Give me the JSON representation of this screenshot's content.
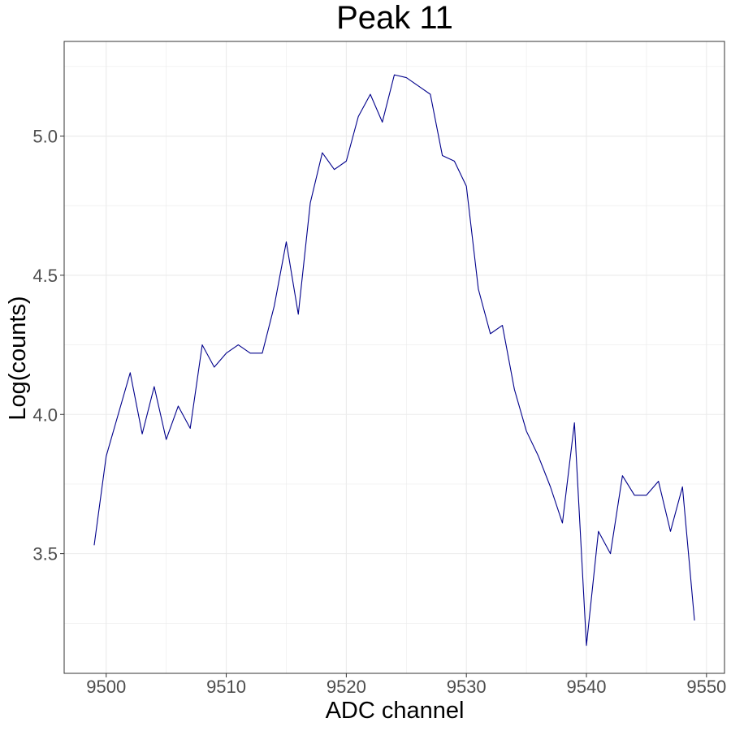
{
  "chart_data": {
    "type": "line",
    "title": "Peak 11",
    "xlabel": "ADC channel",
    "ylabel": "Log(counts)",
    "xlim": [
      9496.5,
      9551.5
    ],
    "ylim": [
      3.07,
      5.34
    ],
    "xticks": [
      9500,
      9510,
      9520,
      9530,
      9540,
      9550
    ],
    "xtick_labels": [
      "9500",
      "9510",
      "9520",
      "9530",
      "9540",
      "9550"
    ],
    "yticks": [
      3.5,
      4.0,
      4.5,
      5.0
    ],
    "ytick_labels": [
      "3.5",
      "4.0",
      "4.5",
      "5.0"
    ],
    "grid": true,
    "legend": "none",
    "colors": {
      "line": "#00008b",
      "grid": "#ebebeb",
      "panel_border": "#333333"
    },
    "series": [
      {
        "x": [
          9499,
          9500,
          9501,
          9502,
          9503,
          9504,
          9505,
          9506,
          9507,
          9508,
          9509,
          9510,
          9511,
          9512,
          9513,
          9514,
          9515,
          9516,
          9517,
          9518,
          9519,
          9520,
          9521,
          9522,
          9523,
          9524,
          9525,
          9526,
          9527,
          9528,
          9529,
          9530,
          9531,
          9532,
          9533,
          9534,
          9535,
          9536,
          9537,
          9538,
          9539,
          9540,
          9541,
          9542,
          9543,
          9544,
          9545,
          9546,
          9547,
          9548,
          9549
        ],
        "values": [
          3.53,
          3.85,
          4.0,
          4.15,
          3.93,
          4.1,
          3.91,
          4.03,
          3.95,
          4.25,
          4.17,
          4.22,
          4.25,
          4.22,
          4.22,
          4.39,
          4.62,
          4.36,
          4.76,
          4.94,
          4.88,
          4.91,
          5.07,
          5.15,
          5.05,
          5.22,
          5.21,
          5.18,
          5.15,
          4.93,
          4.91,
          4.82,
          4.45,
          4.29,
          4.32,
          4.09,
          3.94,
          3.85,
          3.74,
          3.61,
          3.97,
          3.17,
          3.58,
          3.5,
          3.78,
          3.71,
          3.71,
          3.76,
          3.58,
          3.74,
          3.26
        ]
      }
    ]
  }
}
